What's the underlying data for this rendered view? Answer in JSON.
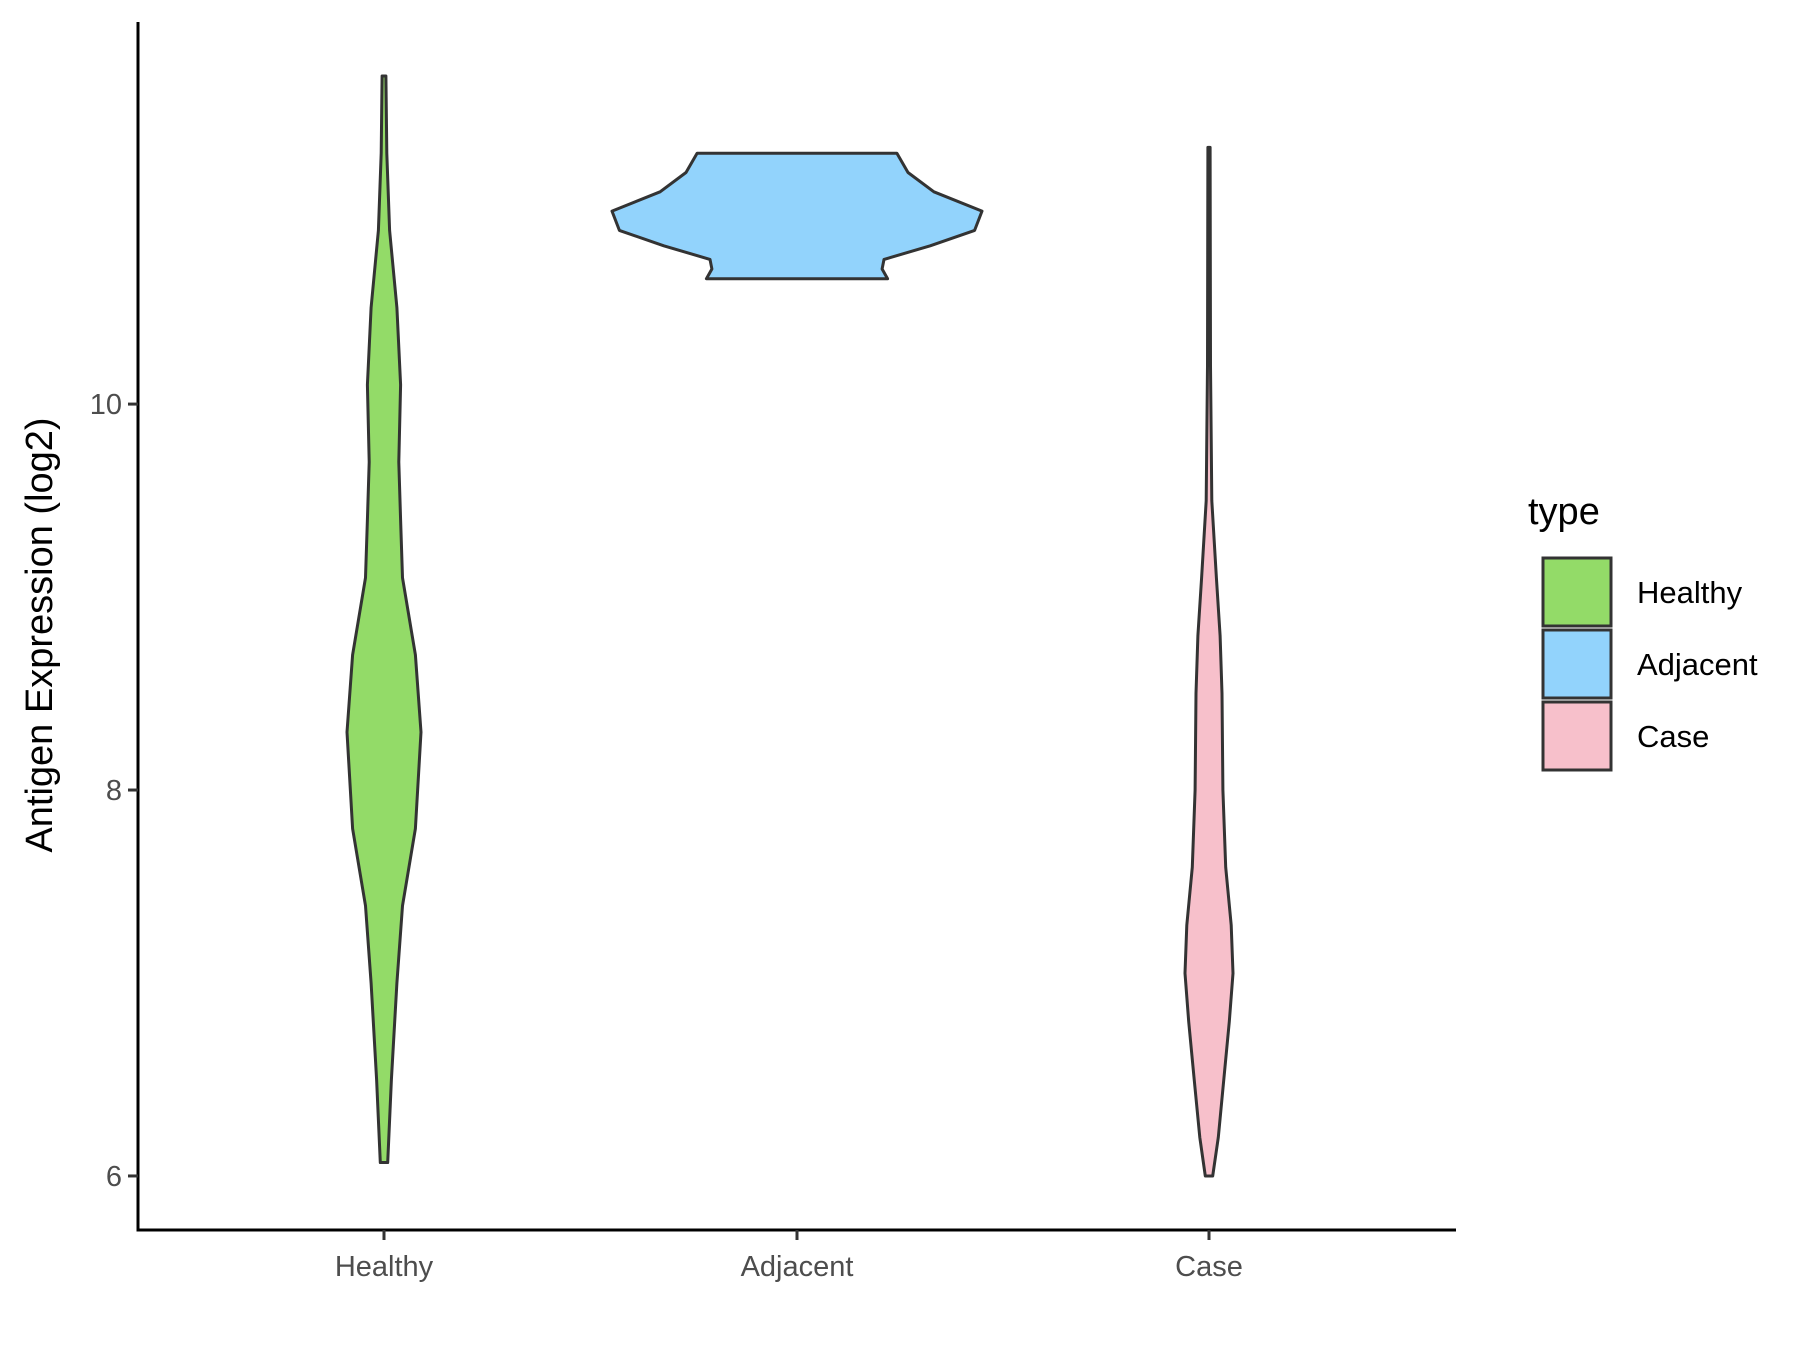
{
  "chart_data": {
    "type": "violin",
    "title": "",
    "xlabel": "",
    "ylabel": "Antigen Expression (log2)",
    "ylim": [
      5.72,
      11.98
    ],
    "yticks": [
      6,
      8,
      10
    ],
    "categories": [
      "Healthy",
      "Adjacent",
      "Case"
    ],
    "legend": {
      "title": "type",
      "position": "right",
      "entries": [
        "Healthy",
        "Adjacent",
        "Case"
      ]
    },
    "grid": false,
    "series": [
      {
        "name": "Healthy",
        "color": "#93DB68",
        "min": 6.07,
        "max": 11.7,
        "density_profile": [
          [
            6.07,
            0.02
          ],
          [
            6.5,
            0.04
          ],
          [
            7.0,
            0.07
          ],
          [
            7.4,
            0.1
          ],
          [
            7.8,
            0.17
          ],
          [
            8.3,
            0.2
          ],
          [
            8.7,
            0.17
          ],
          [
            9.1,
            0.1
          ],
          [
            9.4,
            0.09
          ],
          [
            9.7,
            0.08
          ],
          [
            10.1,
            0.09
          ],
          [
            10.5,
            0.07
          ],
          [
            10.9,
            0.03
          ],
          [
            11.3,
            0.015
          ],
          [
            11.7,
            0.01
          ]
        ]
      },
      {
        "name": "Adjacent",
        "color": "#92D3FC",
        "min": 10.65,
        "max": 11.3,
        "density_profile": [
          [
            10.65,
            0.49
          ],
          [
            10.7,
            0.46
          ],
          [
            10.75,
            0.47
          ],
          [
            10.82,
            0.72
          ],
          [
            10.9,
            0.96
          ],
          [
            11.0,
            1.0
          ],
          [
            11.1,
            0.74
          ],
          [
            11.2,
            0.6
          ],
          [
            11.3,
            0.54
          ]
        ]
      },
      {
        "name": "Case",
        "color": "#F7C0CB",
        "min": 6.0,
        "max": 11.33,
        "density_profile": [
          [
            6.0,
            0.02
          ],
          [
            6.2,
            0.05
          ],
          [
            6.5,
            0.08
          ],
          [
            6.8,
            0.11
          ],
          [
            7.05,
            0.13
          ],
          [
            7.3,
            0.12
          ],
          [
            7.6,
            0.09
          ],
          [
            8.0,
            0.075
          ],
          [
            8.5,
            0.07
          ],
          [
            8.8,
            0.06
          ],
          [
            9.1,
            0.04
          ],
          [
            9.5,
            0.015
          ],
          [
            10.2,
            0.008
          ],
          [
            11.33,
            0.006
          ]
        ]
      }
    ]
  }
}
